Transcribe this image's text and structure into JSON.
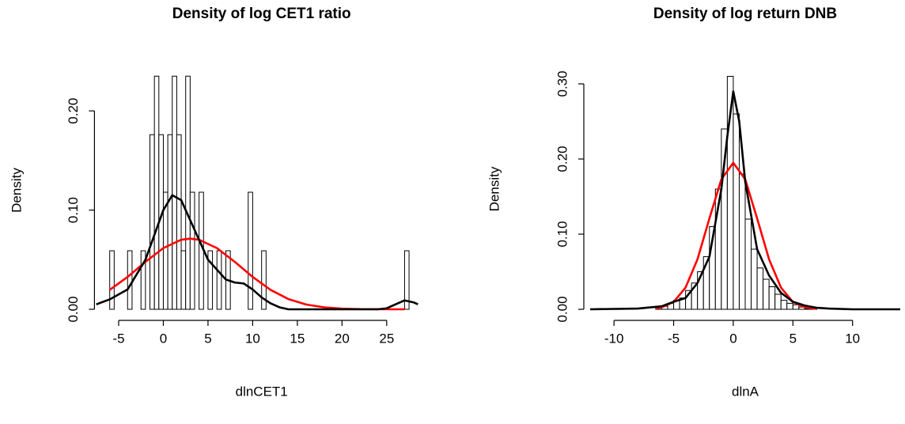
{
  "chart_data": [
    {
      "type": "histogram",
      "title": "Density of log CET1 ratio",
      "xlabel": "dlnCET1",
      "ylabel": "Density",
      "bins": [
        -6,
        -5.5,
        -5,
        -4.5,
        -4,
        -3.5,
        -3,
        -2.5,
        -2,
        -1.5,
        -1,
        -0.5,
        0,
        0.5,
        1,
        1.5,
        2,
        2.5,
        3,
        3.5,
        4,
        4.5,
        5,
        5.5,
        6,
        6.5,
        7,
        7.5,
        8,
        8.5,
        9,
        9.5,
        10,
        10.5,
        11,
        11.5,
        12,
        12.5,
        13,
        13.5,
        14,
        14.5,
        15,
        15.5,
        16,
        16.5,
        17,
        17.5,
        18,
        18.5,
        19,
        19.5,
        20,
        20.5,
        21,
        21.5,
        22,
        22.5,
        23,
        23.5,
        24,
        24.5,
        25,
        25.5,
        26,
        26.5,
        27,
        27.5
      ],
      "values": [
        0.059,
        0,
        0,
        0,
        0.059,
        0,
        0,
        0.059,
        0,
        0.176,
        0.235,
        0.176,
        0.118,
        0.176,
        0.235,
        0.176,
        0.059,
        0.235,
        0.118,
        0,
        0.118,
        0,
        0.059,
        0,
        0.059,
        0,
        0.059,
        0,
        0,
        0,
        0,
        0.118,
        0,
        0,
        0.059,
        0,
        0,
        0,
        0,
        0,
        0,
        0,
        0,
        0,
        0,
        0,
        0,
        0,
        0,
        0,
        0,
        0,
        0,
        0,
        0,
        0,
        0,
        0,
        0,
        0,
        0,
        0,
        0,
        0,
        0,
        0,
        0.059
      ],
      "bar_color": "#ffffff",
      "bar_edge_color": "#000000",
      "series": [
        {
          "color": "#ff0000",
          "x": [
            -6,
            -4,
            -2,
            0,
            2,
            3,
            4,
            6,
            8,
            10,
            12,
            14,
            16,
            18,
            20,
            22,
            24,
            26,
            27
          ],
          "values": [
            0.0196,
            0.0326,
            0.0478,
            0.0617,
            0.0701,
            0.0712,
            0.0701,
            0.0617,
            0.0478,
            0.0326,
            0.0196,
            0.0103,
            0.0048,
            0.002,
            0.0007,
            0.0002,
            0.0001,
            0,
            0
          ]
        },
        {
          "color": "#000000",
          "x": [
            -7.5,
            -6,
            -4,
            -2,
            0,
            1,
            2,
            3,
            4,
            5,
            6,
            7,
            8,
            9,
            10,
            11,
            12,
            13,
            14,
            16,
            20,
            24,
            25,
            26,
            27,
            28,
            28.5
          ],
          "values": [
            0.005,
            0.01,
            0.02,
            0.05,
            0.1,
            0.115,
            0.11,
            0.09,
            0.07,
            0.05,
            0.04,
            0.03,
            0.027,
            0.026,
            0.02,
            0.012,
            0.006,
            0.002,
            0,
            0,
            0,
            0,
            0.001,
            0.005,
            0.009,
            0.007,
            0.005
          ]
        }
      ],
      "xlim": [
        -7,
        29
      ],
      "ylim": [
        0,
        0.24
      ],
      "xticks": [
        -5,
        0,
        5,
        10,
        15,
        20,
        25
      ],
      "yticks": [
        {
          "value": 0,
          "label": "0.00"
        },
        {
          "value": 0.1,
          "label": "0.10"
        },
        {
          "value": 0.2,
          "label": "0.20"
        }
      ]
    },
    {
      "type": "histogram",
      "title": "Density of log return DNB",
      "xlabel": "dlnA",
      "ylabel": "Density",
      "bins": [
        -6.5,
        -6,
        -5.5,
        -5,
        -4.5,
        -4,
        -3.5,
        -3,
        -2.5,
        -2,
        -1.5,
        -1,
        -0.5,
        0,
        0.5,
        1,
        1.5,
        2,
        2.5,
        3,
        3.5,
        4,
        4.5,
        5,
        5.5,
        6,
        6.5,
        7
      ],
      "values": [
        0.002,
        0.004,
        0.008,
        0.012,
        0.015,
        0.025,
        0.035,
        0.05,
        0.07,
        0.11,
        0.16,
        0.24,
        0.31,
        0.26,
        0.18,
        0.12,
        0.08,
        0.055,
        0.04,
        0.03,
        0.02,
        0.012,
        0.008,
        0.006,
        0.003,
        0.001,
        0.001
      ],
      "bar_color": "#ffffff",
      "bar_edge_color": "#000000",
      "series": [
        {
          "color": "#ff0000",
          "x": [
            -6.5,
            -6,
            -5,
            -4,
            -3,
            -2,
            -1,
            0,
            1,
            2,
            3,
            4,
            5,
            6,
            7
          ],
          "values": [
            0.0012,
            0.0027,
            0.0098,
            0.0289,
            0.0666,
            0.1209,
            0.173,
            0.195,
            0.173,
            0.1209,
            0.0666,
            0.0289,
            0.0098,
            0.0027,
            0.0006
          ]
        },
        {
          "color": "#000000",
          "x": [
            -12,
            -8,
            -6,
            -5,
            -4,
            -3,
            -2,
            -1,
            -0.5,
            0,
            0.5,
            1,
            2,
            3,
            4,
            5,
            6,
            7,
            8,
            10,
            14
          ],
          "values": [
            0,
            0.001,
            0.004,
            0.01,
            0.015,
            0.035,
            0.07,
            0.16,
            0.23,
            0.29,
            0.25,
            0.17,
            0.08,
            0.045,
            0.022,
            0.01,
            0.005,
            0.002,
            0.001,
            0,
            0
          ]
        }
      ],
      "xlim": [
        -12,
        14
      ],
      "ylim": [
        0,
        0.32
      ],
      "xticks": [
        -10,
        -5,
        0,
        5,
        10
      ],
      "yticks": [
        {
          "value": 0,
          "label": "0.00"
        },
        {
          "value": 0.1,
          "label": "0.10"
        },
        {
          "value": 0.2,
          "label": "0.20"
        },
        {
          "value": 0.3,
          "label": "0.30"
        }
      ]
    }
  ]
}
